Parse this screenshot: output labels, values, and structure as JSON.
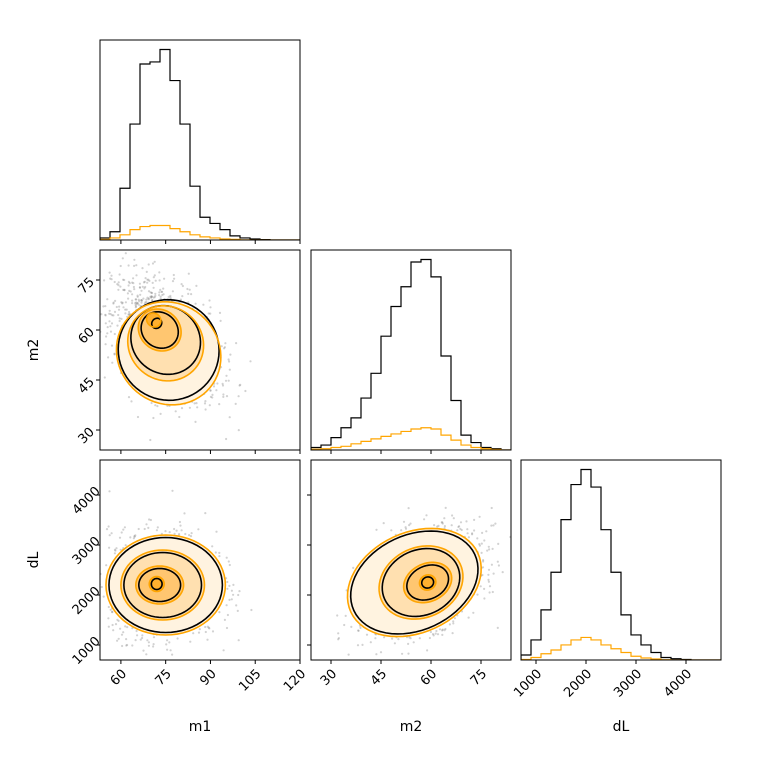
{
  "chart_data": {
    "type": "corner",
    "title": "",
    "parameters": [
      "m1",
      "m2",
      "dL"
    ],
    "colors": {
      "primary": "#000000",
      "secondary": "#ffa500",
      "scatter": "#7f7f7f"
    },
    "axis_ranges": {
      "m1": [
        53,
        120
      ],
      "m2": [
        24,
        84
      ],
      "dL": [
        700,
        4700
      ]
    },
    "ticks": {
      "m1": [
        60,
        75,
        90,
        105,
        120
      ],
      "m2": [
        30,
        45,
        60,
        75
      ],
      "dL": [
        1000,
        2000,
        3000,
        4000
      ]
    },
    "tick_labels": {
      "m1": [
        "60",
        "75",
        "90",
        "105",
        "120"
      ],
      "m2": [
        "30",
        "45",
        "60",
        "75"
      ],
      "dL": [
        "1000",
        "2000",
        "3000",
        "4000"
      ]
    },
    "histograms": {
      "m1": {
        "edges": [
          53,
          56.35,
          59.7,
          63.05,
          66.4,
          69.75,
          73.1,
          76.45,
          79.8,
          83.15,
          86.5,
          89.85,
          93.2,
          96.55,
          99.9,
          103.25,
          106.6,
          109.95,
          113.3,
          116.65,
          120
        ],
        "series": [
          {
            "name": "black",
            "values": [
              1,
              4,
              25,
              56,
              85,
              86,
              92,
              77,
              56,
              26,
              11,
              8,
              5,
              2,
              1,
              0.5,
              0.2,
              0,
              0,
              0
            ]
          },
          {
            "name": "orange",
            "values": [
              0.3,
              1,
              2.5,
              5,
              6.5,
              7,
              7,
              5.5,
              4,
              2.5,
              1.5,
              1,
              0.5,
              0.3,
              0.1,
              0,
              0,
              0,
              0,
              0
            ]
          }
        ]
      },
      "m2": {
        "edges": [
          24,
          27,
          30,
          33,
          36,
          39,
          42,
          45,
          48,
          51,
          54,
          57,
          60,
          63,
          66,
          69,
          72,
          75,
          78,
          81,
          84
        ],
        "series": [
          {
            "name": "black",
            "values": [
              1,
              2,
              5,
              9,
              13,
              21,
              31,
              46,
              58,
              66,
              76,
              77,
              70,
              38,
              20,
              6,
              3,
              1,
              0.5,
              0
            ]
          },
          {
            "name": "orange",
            "values": [
              0.3,
              0.5,
              1,
              1.5,
              2.5,
              3.5,
              4.5,
              5.5,
              6.5,
              7.5,
              8.5,
              9,
              8.5,
              6,
              4,
              2,
              1,
              0.5,
              0.2,
              0
            ]
          }
        ]
      },
      "dL": {
        "edges": [
          700,
          900,
          1100,
          1300,
          1500,
          1700,
          1900,
          2100,
          2300,
          2500,
          2700,
          2900,
          3100,
          3300,
          3500,
          3700,
          3900,
          4100,
          4300,
          4500,
          4700
        ],
        "series": [
          {
            "name": "black",
            "values": [
              2,
              8,
              20,
              35,
              56,
              70,
              76,
              69,
              52,
              35,
              18,
              10,
              6,
              3,
              1,
              0.5,
              0.2,
              0,
              0,
              0
            ]
          },
          {
            "name": "orange",
            "values": [
              0.2,
              1,
              2.5,
              4,
              6,
              8,
              9,
              8,
              6,
              4.5,
              3,
              1.5,
              0.8,
              0.4,
              0.1,
              0,
              0,
              0,
              0,
              0
            ]
          }
        ]
      }
    },
    "contours_2d": {
      "m2_vs_m1": {
        "x": "m1",
        "y": "m2",
        "peak": [
          71,
          62
        ],
        "black_levels": [
          {
            "cx": 72,
            "cy": 62,
            "rx": 1.6,
            "ry": 1.6,
            "rot": -40
          },
          {
            "cx": 73,
            "cy": 60,
            "rx": 6.5,
            "ry": 5.2,
            "rot": -40
          },
          {
            "cx": 75,
            "cy": 57,
            "rx": 12,
            "ry": 10,
            "rot": -40
          },
          {
            "cx": 76,
            "cy": 54,
            "rx": 17,
            "ry": 15,
            "rot": -40
          }
        ],
        "orange_levels": [
          {
            "cx": 71,
            "cy": 63,
            "rx": 2.5,
            "ry": 2,
            "rot": -40
          },
          {
            "cx": 73,
            "cy": 60,
            "rx": 7.5,
            "ry": 6,
            "rot": -40
          },
          {
            "cx": 75,
            "cy": 56,
            "rx": 13,
            "ry": 11,
            "rot": -40
          },
          {
            "cx": 76,
            "cy": 53,
            "rx": 18,
            "ry": 15,
            "rot": -40
          }
        ]
      },
      "dL_vs_m1": {
        "x": "m1",
        "y": "dL",
        "peak": [
          72,
          2200
        ],
        "black_levels": [
          {
            "cx": 72,
            "cy": 2220,
            "rx": 1.8,
            "ry": 110,
            "rot": 0
          },
          {
            "cx": 73,
            "cy": 2200,
            "rx": 7,
            "ry": 330,
            "rot": 0
          },
          {
            "cx": 74,
            "cy": 2200,
            "rx": 13,
            "ry": 650,
            "rot": 0
          },
          {
            "cx": 75,
            "cy": 2200,
            "rx": 19,
            "ry": 950,
            "rot": 0
          }
        ],
        "orange_levels": [
          {
            "cx": 72,
            "cy": 2220,
            "rx": 2.5,
            "ry": 150,
            "rot": 0
          },
          {
            "cx": 73,
            "cy": 2200,
            "rx": 8,
            "ry": 380,
            "rot": 0
          },
          {
            "cx": 74,
            "cy": 2200,
            "rx": 14,
            "ry": 700,
            "rot": 0
          },
          {
            "cx": 75,
            "cy": 2200,
            "rx": 20,
            "ry": 1000,
            "rot": 0
          }
        ]
      },
      "dL_vs_m2": {
        "x": "m2",
        "y": "dL",
        "peak": [
          59,
          2250
        ],
        "black_levels": [
          {
            "cx": 59,
            "cy": 2250,
            "rx": 1.8,
            "ry": 110,
            "rot": 25
          },
          {
            "cx": 59,
            "cy": 2250,
            "rx": 6.5,
            "ry": 330,
            "rot": 25
          },
          {
            "cx": 57,
            "cy": 2250,
            "rx": 12,
            "ry": 650,
            "rot": 25
          },
          {
            "cx": 55,
            "cy": 2250,
            "rx": 20,
            "ry": 950,
            "rot": 25
          }
        ],
        "orange_levels": [
          {
            "cx": 59,
            "cy": 2250,
            "rx": 2.5,
            "ry": 150,
            "rot": 25
          },
          {
            "cx": 59,
            "cy": 2250,
            "rx": 7.5,
            "ry": 380,
            "rot": 25
          },
          {
            "cx": 57,
            "cy": 2250,
            "rx": 13,
            "ry": 700,
            "rot": 25
          },
          {
            "cx": 55,
            "cy": 2250,
            "rx": 21,
            "ry": 1000,
            "rot": 25
          }
        ]
      }
    },
    "scatter_samples": {
      "m2_vs_m1": {
        "count": 1400,
        "center": [
          75,
          57
        ],
        "spread": [
          9,
          9
        ],
        "corr": -0.45
      },
      "dL_vs_m1": {
        "count": 1400,
        "center": [
          74,
          2220
        ],
        "spread": [
          9,
          520
        ],
        "corr": 0.0
      },
      "dL_vs_m2": {
        "count": 1400,
        "center": [
          57,
          2250
        ],
        "spread": [
          9,
          520
        ],
        "corr": 0.4
      }
    }
  }
}
